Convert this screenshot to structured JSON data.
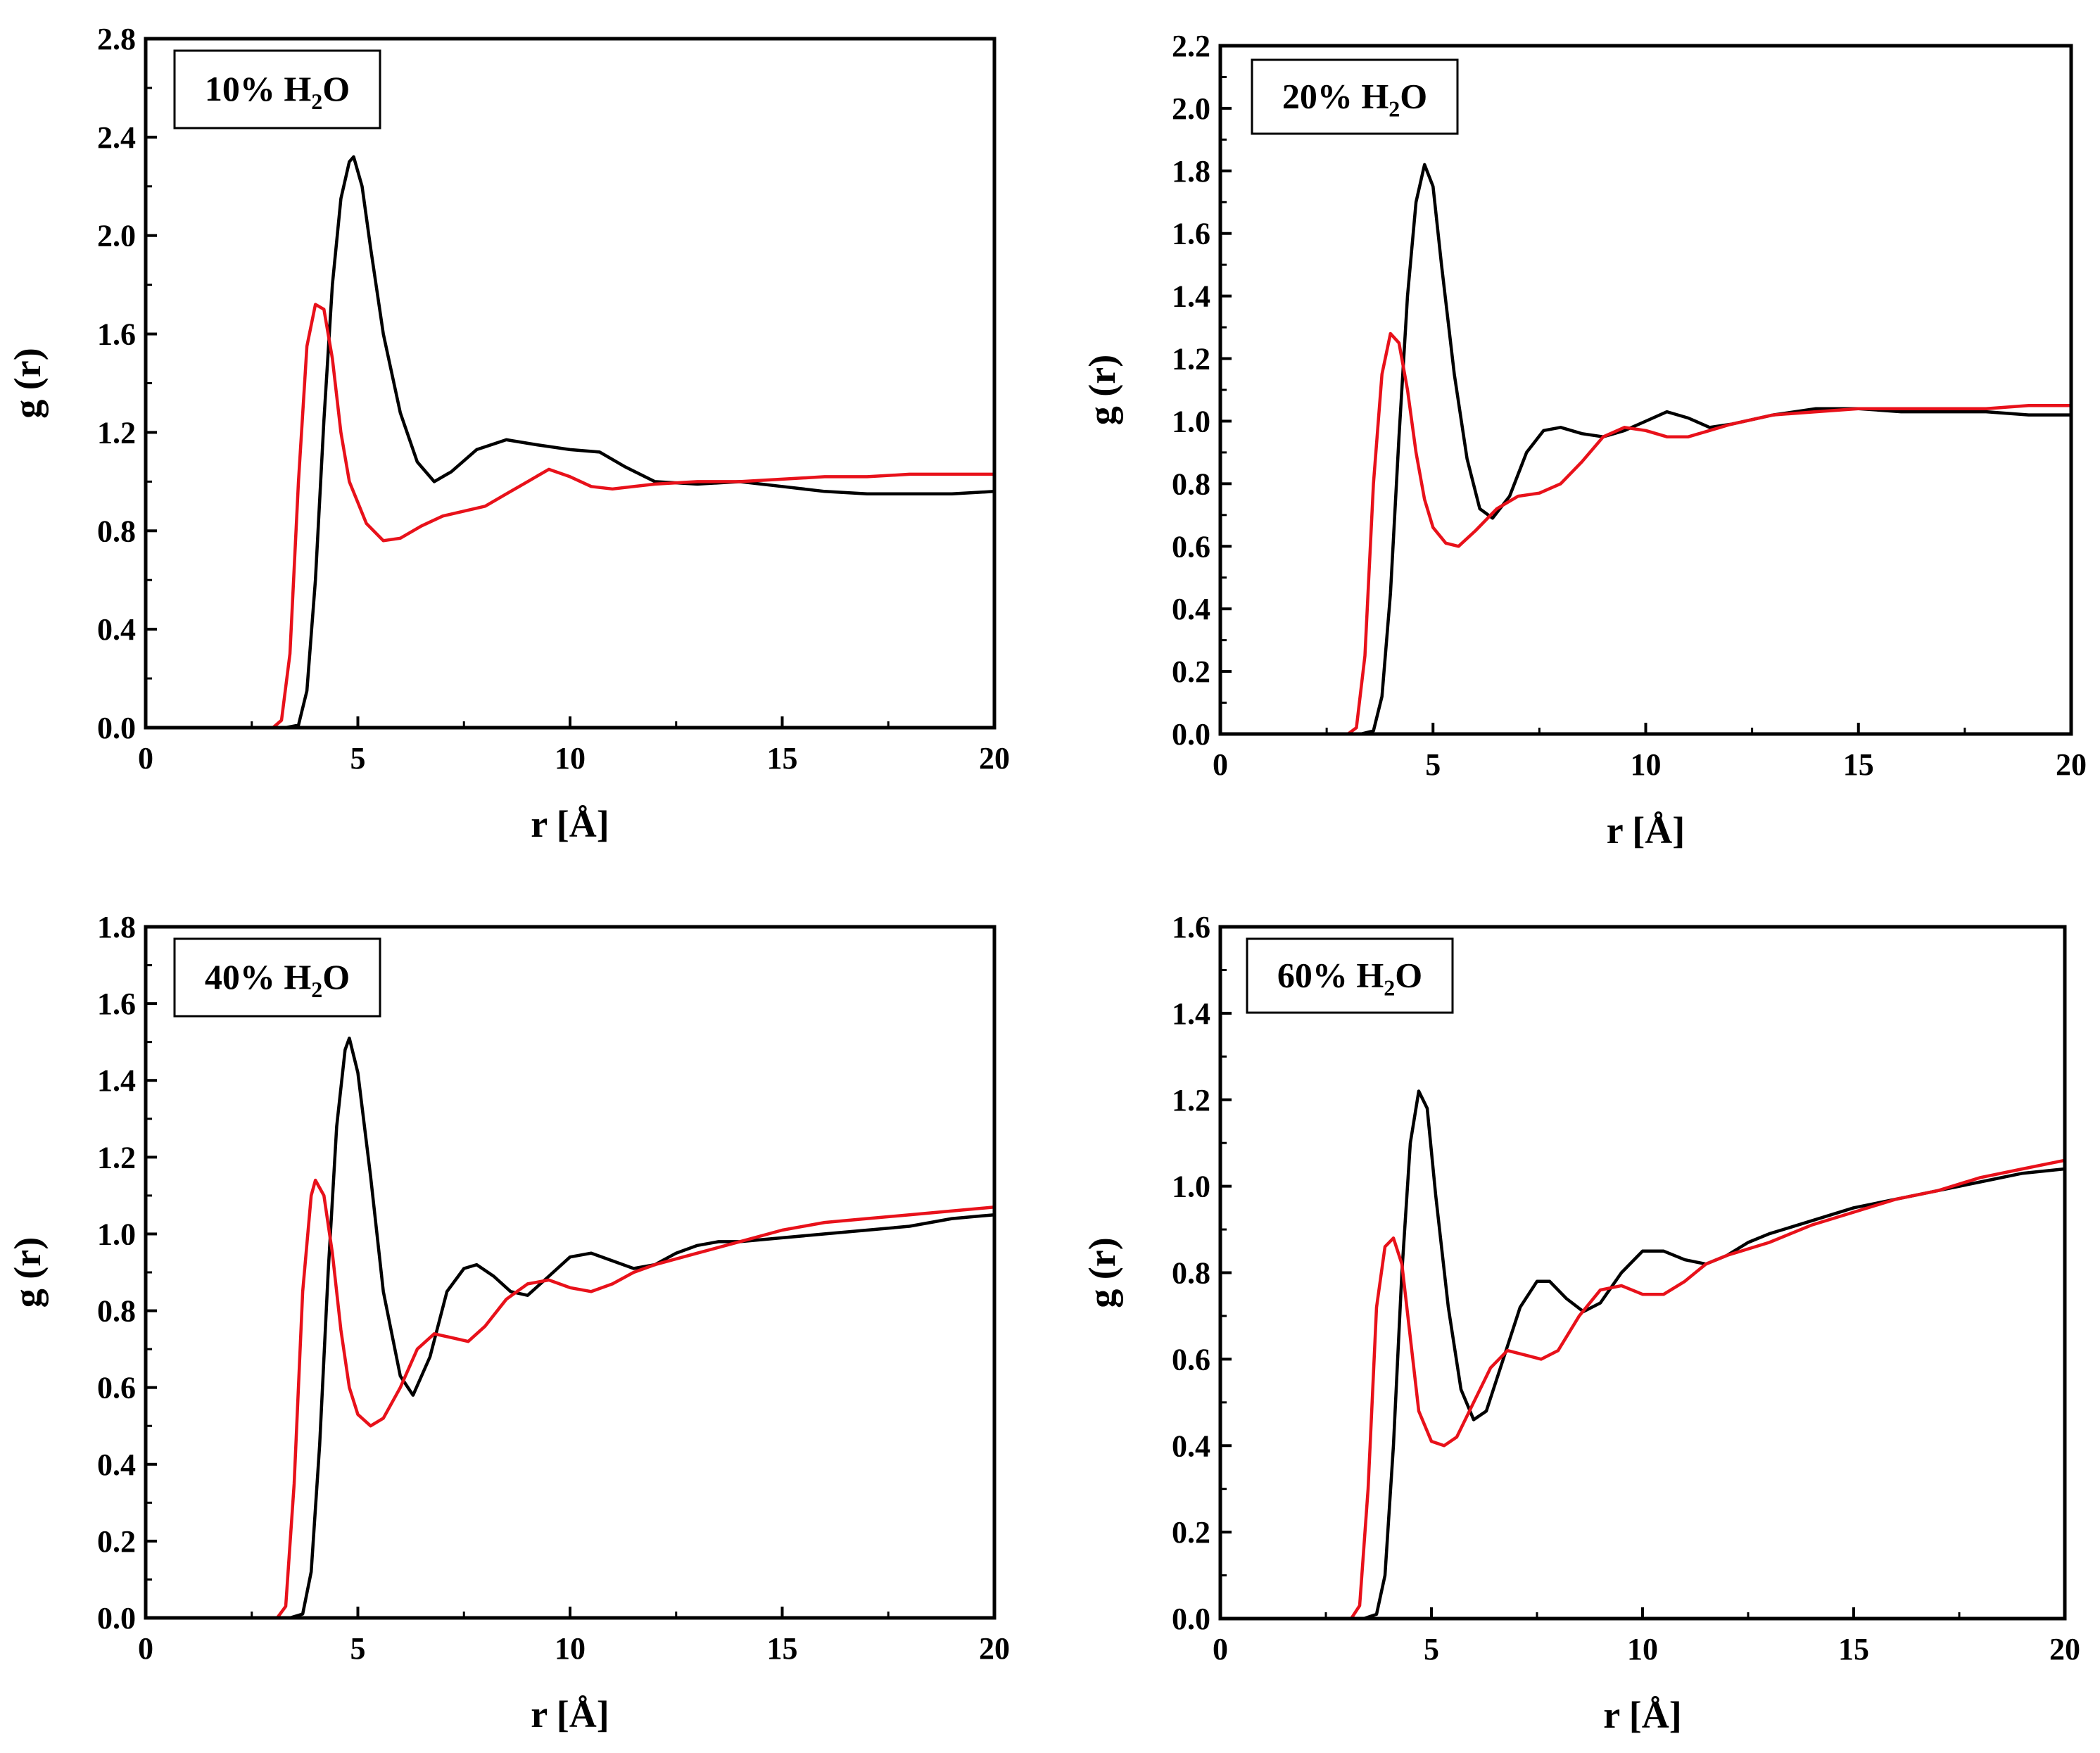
{
  "chart_data": [
    {
      "type": "line",
      "label": {
        "prefix": "10% H",
        "sub": "2",
        "suffix": "O"
      },
      "xlabel": "r [Å]",
      "ylabel": "g (r)",
      "xlim": [
        0,
        20
      ],
      "ylim": [
        0,
        2.8
      ],
      "xticks": [
        0,
        5,
        10,
        15,
        20
      ],
      "xtick_labels": [
        "0",
        "5",
        "10",
        "15",
        "20"
      ],
      "yticks": [
        0,
        0.4,
        0.8,
        1.2,
        1.6,
        2.0,
        2.4,
        2.8
      ],
      "ytick_labels": [
        "0.0",
        "0.4",
        "0.8",
        "1.2",
        "1.6",
        "2.0",
        "2.4",
        "2.8"
      ],
      "series": [
        {
          "name": "black",
          "color": "#000000",
          "x": [
            0,
            3.3,
            3.6,
            3.8,
            4.0,
            4.2,
            4.4,
            4.6,
            4.8,
            4.9,
            5.1,
            5.3,
            5.6,
            6.0,
            6.4,
            6.8,
            7.2,
            7.8,
            8.5,
            9.2,
            10.0,
            10.7,
            11.3,
            12.0,
            13.0,
            14.0,
            15.0,
            16.0,
            17.0,
            18.0,
            19.0,
            20.0
          ],
          "y": [
            0,
            0,
            0.01,
            0.15,
            0.6,
            1.25,
            1.8,
            2.15,
            2.3,
            2.32,
            2.2,
            1.95,
            1.6,
            1.28,
            1.08,
            1.0,
            1.04,
            1.13,
            1.17,
            1.15,
            1.13,
            1.12,
            1.06,
            1.0,
            0.99,
            1.0,
            0.98,
            0.96,
            0.95,
            0.95,
            0.95,
            0.96
          ]
        },
        {
          "name": "red",
          "color": "#e8111a",
          "x": [
            0,
            3.0,
            3.2,
            3.4,
            3.6,
            3.8,
            4.0,
            4.2,
            4.4,
            4.6,
            4.8,
            5.2,
            5.6,
            6.0,
            6.5,
            7.0,
            7.5,
            8.0,
            8.5,
            9.0,
            9.5,
            10.0,
            10.5,
            11.0,
            12.0,
            13.0,
            14.0,
            15.0,
            16.0,
            17.0,
            18.0,
            19.0,
            20.0
          ],
          "y": [
            0,
            0,
            0.03,
            0.3,
            1.0,
            1.55,
            1.72,
            1.7,
            1.5,
            1.2,
            1.0,
            0.83,
            0.76,
            0.77,
            0.82,
            0.86,
            0.88,
            0.9,
            0.95,
            1.0,
            1.05,
            1.02,
            0.98,
            0.97,
            0.99,
            1.0,
            1.0,
            1.01,
            1.02,
            1.02,
            1.03,
            1.03,
            1.03
          ]
        }
      ]
    },
    {
      "type": "line",
      "label": {
        "prefix": "20% H",
        "sub": "2",
        "suffix": "O"
      },
      "xlabel": "r [Å]",
      "ylabel": "g (r)",
      "xlim": [
        0,
        20
      ],
      "ylim": [
        0,
        2.2
      ],
      "xticks": [
        0,
        5,
        10,
        15,
        20
      ],
      "xtick_labels": [
        "0",
        "5",
        "10",
        "15",
        "20"
      ],
      "yticks": [
        0,
        0.2,
        0.4,
        0.6,
        0.8,
        1.0,
        1.2,
        1.4,
        1.6,
        1.8,
        2.0,
        2.2
      ],
      "ytick_labels": [
        "0.0",
        "0.2",
        "0.4",
        "0.6",
        "0.8",
        "1.0",
        "1.2",
        "1.4",
        "1.6",
        "1.8",
        "2.0",
        "2.2"
      ],
      "series": [
        {
          "name": "black",
          "color": "#000000",
          "x": [
            0,
            3.3,
            3.6,
            3.8,
            4.0,
            4.2,
            4.4,
            4.6,
            4.8,
            5.0,
            5.2,
            5.5,
            5.8,
            6.1,
            6.4,
            6.8,
            7.2,
            7.6,
            8.0,
            8.5,
            9.0,
            9.5,
            10.0,
            10.5,
            11.0,
            11.5,
            12.0,
            13.0,
            14.0,
            15.0,
            16.0,
            17.0,
            18.0,
            19.0,
            20.0
          ],
          "y": [
            0,
            0,
            0.01,
            0.12,
            0.45,
            0.95,
            1.4,
            1.7,
            1.82,
            1.75,
            1.5,
            1.15,
            0.88,
            0.72,
            0.69,
            0.76,
            0.9,
            0.97,
            0.98,
            0.96,
            0.95,
            0.97,
            1.0,
            1.03,
            1.01,
            0.98,
            0.99,
            1.02,
            1.04,
            1.04,
            1.03,
            1.03,
            1.03,
            1.02,
            1.02
          ]
        },
        {
          "name": "red",
          "color": "#e8111a",
          "x": [
            0,
            3.0,
            3.2,
            3.4,
            3.6,
            3.8,
            4.0,
            4.2,
            4.4,
            4.6,
            4.8,
            5.0,
            5.3,
            5.6,
            6.0,
            6.5,
            7.0,
            7.5,
            8.0,
            8.5,
            9.0,
            9.5,
            10.0,
            10.5,
            11.0,
            11.5,
            12.0,
            13.0,
            14.0,
            15.0,
            16.0,
            17.0,
            18.0,
            19.0,
            20.0
          ],
          "y": [
            0,
            0,
            0.02,
            0.25,
            0.8,
            1.15,
            1.28,
            1.25,
            1.1,
            0.9,
            0.75,
            0.66,
            0.61,
            0.6,
            0.65,
            0.72,
            0.76,
            0.77,
            0.8,
            0.87,
            0.95,
            0.98,
            0.97,
            0.95,
            0.95,
            0.97,
            0.99,
            1.02,
            1.03,
            1.04,
            1.04,
            1.04,
            1.04,
            1.05,
            1.05
          ]
        }
      ]
    },
    {
      "type": "line",
      "label": {
        "prefix": "40% H",
        "sub": "2",
        "suffix": "O"
      },
      "xlabel": "r [Å]",
      "ylabel": "g (r)",
      "xlim": [
        0,
        20
      ],
      "ylim": [
        0,
        1.8
      ],
      "xticks": [
        0,
        5,
        10,
        15,
        20
      ],
      "xtick_labels": [
        "0",
        "5",
        "10",
        "15",
        "20"
      ],
      "yticks": [
        0,
        0.2,
        0.4,
        0.6,
        0.8,
        1.0,
        1.2,
        1.4,
        1.6,
        1.8
      ],
      "ytick_labels": [
        "0.0",
        "0.2",
        "0.4",
        "0.6",
        "0.8",
        "1.0",
        "1.2",
        "1.4",
        "1.6",
        "1.8"
      ],
      "series": [
        {
          "name": "black",
          "color": "#000000",
          "x": [
            0,
            3.4,
            3.7,
            3.9,
            4.1,
            4.3,
            4.5,
            4.7,
            4.8,
            5.0,
            5.3,
            5.6,
            6.0,
            6.3,
            6.7,
            7.1,
            7.5,
            7.8,
            8.2,
            8.6,
            9.0,
            9.5,
            10.0,
            10.5,
            11.0,
            11.5,
            12.0,
            12.5,
            13.0,
            13.5,
            14.0,
            15.0,
            16.0,
            17.0,
            18.0,
            19.0,
            20.0
          ],
          "y": [
            0,
            0,
            0.01,
            0.12,
            0.45,
            0.9,
            1.28,
            1.48,
            1.51,
            1.42,
            1.15,
            0.85,
            0.63,
            0.58,
            0.68,
            0.85,
            0.91,
            0.92,
            0.89,
            0.85,
            0.84,
            0.89,
            0.94,
            0.95,
            0.93,
            0.91,
            0.92,
            0.95,
            0.97,
            0.98,
            0.98,
            0.99,
            1.0,
            1.01,
            1.02,
            1.04,
            1.05
          ]
        },
        {
          "name": "red",
          "color": "#e8111a",
          "x": [
            0,
            3.1,
            3.3,
            3.5,
            3.7,
            3.9,
            4.0,
            4.2,
            4.4,
            4.6,
            4.8,
            5.0,
            5.3,
            5.6,
            6.0,
            6.4,
            6.8,
            7.2,
            7.6,
            8.0,
            8.5,
            9.0,
            9.5,
            10.0,
            10.5,
            11.0,
            11.5,
            12.0,
            13.0,
            14.0,
            15.0,
            16.0,
            17.0,
            18.0,
            19.0,
            20.0
          ],
          "y": [
            0,
            0,
            0.03,
            0.35,
            0.85,
            1.1,
            1.14,
            1.1,
            0.95,
            0.75,
            0.6,
            0.53,
            0.5,
            0.52,
            0.6,
            0.7,
            0.74,
            0.73,
            0.72,
            0.76,
            0.83,
            0.87,
            0.88,
            0.86,
            0.85,
            0.87,
            0.9,
            0.92,
            0.95,
            0.98,
            1.01,
            1.03,
            1.04,
            1.05,
            1.06,
            1.07
          ]
        }
      ]
    },
    {
      "type": "line",
      "label": {
        "prefix": "60% H",
        "sub": "2",
        "suffix": "O"
      },
      "xlabel": "r [Å]",
      "ylabel": "g (r)",
      "xlim": [
        0,
        20
      ],
      "ylim": [
        0,
        1.6
      ],
      "xticks": [
        0,
        5,
        10,
        15,
        20
      ],
      "xtick_labels": [
        "0",
        "5",
        "10",
        "15",
        "20"
      ],
      "yticks": [
        0,
        0.2,
        0.4,
        0.6,
        0.8,
        1.0,
        1.2,
        1.4,
        1.6
      ],
      "ytick_labels": [
        "0.0",
        "0.2",
        "0.4",
        "0.6",
        "0.8",
        "1.0",
        "1.2",
        "1.4",
        "1.6"
      ],
      "series": [
        {
          "name": "black",
          "color": "#000000",
          "x": [
            0,
            3.4,
            3.7,
            3.9,
            4.1,
            4.3,
            4.5,
            4.7,
            4.9,
            5.1,
            5.4,
            5.7,
            6.0,
            6.3,
            6.7,
            7.1,
            7.5,
            7.8,
            8.2,
            8.6,
            9.0,
            9.5,
            10.0,
            10.5,
            11.0,
            11.5,
            12.0,
            12.5,
            13.0,
            14.0,
            15.0,
            16.0,
            17.0,
            18.0,
            19.0,
            20.0
          ],
          "y": [
            0,
            0,
            0.01,
            0.1,
            0.4,
            0.8,
            1.1,
            1.22,
            1.18,
            0.98,
            0.72,
            0.53,
            0.46,
            0.48,
            0.6,
            0.72,
            0.78,
            0.78,
            0.74,
            0.71,
            0.73,
            0.8,
            0.85,
            0.85,
            0.83,
            0.82,
            0.84,
            0.87,
            0.89,
            0.92,
            0.95,
            0.97,
            0.99,
            1.01,
            1.03,
            1.04
          ]
        },
        {
          "name": "red",
          "color": "#e8111a",
          "x": [
            0,
            3.1,
            3.3,
            3.5,
            3.7,
            3.9,
            4.1,
            4.3,
            4.5,
            4.7,
            5.0,
            5.3,
            5.6,
            6.0,
            6.4,
            6.8,
            7.2,
            7.6,
            8.0,
            8.5,
            9.0,
            9.5,
            10.0,
            10.5,
            11.0,
            11.5,
            12.0,
            13.0,
            14.0,
            15.0,
            16.0,
            17.0,
            18.0,
            19.0,
            20.0
          ],
          "y": [
            0,
            0,
            0.03,
            0.3,
            0.72,
            0.86,
            0.88,
            0.82,
            0.65,
            0.48,
            0.41,
            0.4,
            0.42,
            0.5,
            0.58,
            0.62,
            0.61,
            0.6,
            0.62,
            0.7,
            0.76,
            0.77,
            0.75,
            0.75,
            0.78,
            0.82,
            0.84,
            0.87,
            0.91,
            0.94,
            0.97,
            0.99,
            1.02,
            1.04,
            1.06
          ]
        }
      ]
    }
  ]
}
